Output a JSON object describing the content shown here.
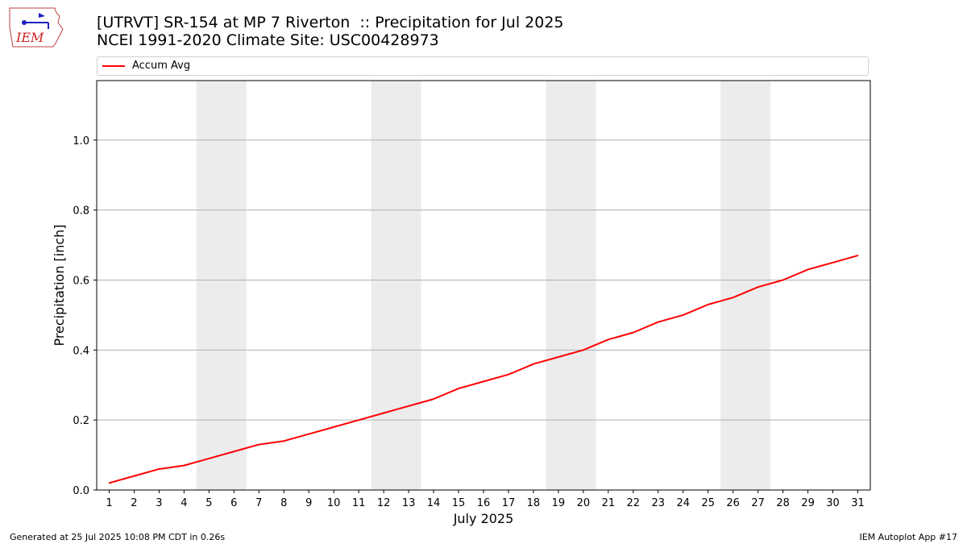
{
  "header": {
    "title_line1": "[UTRVT] SR-154 at MP 7 Riverton  :: Precipitation for Jul 2025",
    "title_line2": "NCEI 1991-2020 Climate Site: USC00428973",
    "logo_text": "IEM"
  },
  "footer": {
    "left": "Generated at 25 Jul 2025 10:08 PM CDT in 0.26s",
    "right": "IEM Autoplot App #17"
  },
  "colors": {
    "line": "#ff0000",
    "weekend_band": "#ececec",
    "grid": "#b0b0b0"
  },
  "chart_data": {
    "type": "line",
    "xlabel": "July 2025",
    "ylabel": "Precipitation [inch]",
    "x": [
      1,
      2,
      3,
      4,
      5,
      6,
      7,
      8,
      9,
      10,
      11,
      12,
      13,
      14,
      15,
      16,
      17,
      18,
      19,
      20,
      21,
      22,
      23,
      24,
      25,
      26,
      27,
      28,
      29,
      30,
      31
    ],
    "xlim": [
      0.5,
      31.5
    ],
    "ylim": [
      0,
      1.17
    ],
    "yticks": [
      0.0,
      0.2,
      0.4,
      0.6,
      0.8,
      1.0
    ],
    "ytick_labels": [
      "0.0",
      "0.2",
      "0.4",
      "0.6",
      "0.8",
      "1.0"
    ],
    "grid": "horizontal",
    "legend_position": "top",
    "weekend_bands": [
      [
        4.5,
        6.5
      ],
      [
        11.5,
        13.5
      ],
      [
        18.5,
        20.5
      ],
      [
        25.5,
        27.5
      ]
    ],
    "series": [
      {
        "name": "Accum Avg",
        "color": "#ff0000",
        "values": [
          0.02,
          0.04,
          0.06,
          0.07,
          0.09,
          0.11,
          0.13,
          0.14,
          0.16,
          0.18,
          0.2,
          0.22,
          0.24,
          0.26,
          0.29,
          0.31,
          0.33,
          0.36,
          0.38,
          0.4,
          0.43,
          0.45,
          0.48,
          0.5,
          0.53,
          0.55,
          0.58,
          0.6,
          0.63,
          0.65,
          0.67
        ]
      }
    ]
  }
}
